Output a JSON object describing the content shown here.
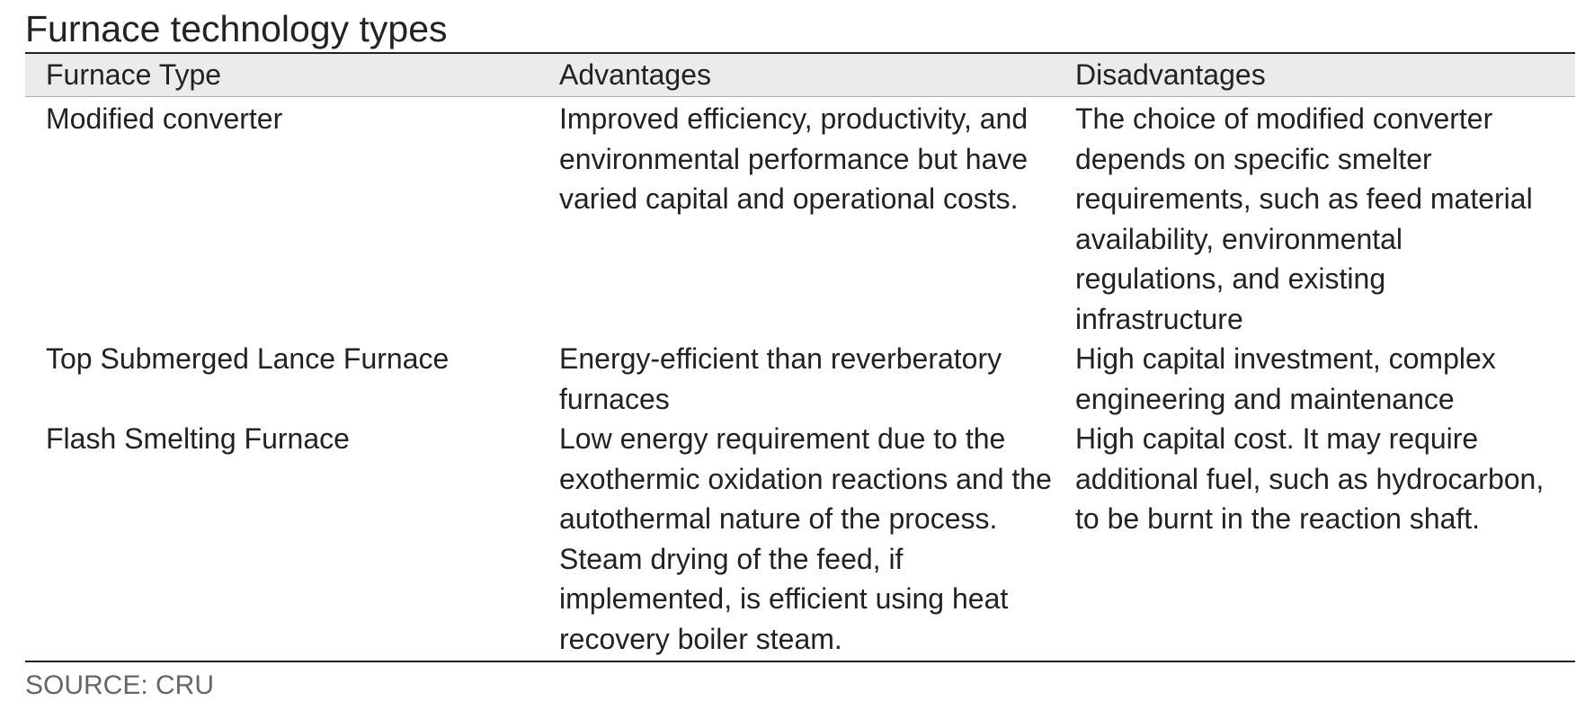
{
  "header": {
    "title": "Furnace technology types"
  },
  "table": {
    "columns": [
      "Furnace Type",
      "Advantages",
      "Disadvantages"
    ],
    "rows": [
      [
        "Modified converter",
        "Improved efficiency, productivity, and environmental performance but have varied capital and operational costs.",
        "The choice of modified converter depends on specific smelter requirements, such as feed material availability, environmental regulations, and existing infrastructure"
      ],
      [
        "Top Submerged Lance Furnace",
        "Energy-efficient than reverberatory furnaces",
        "High capital investment, complex engineering and maintenance"
      ],
      [
        "Flash Smelting Furnace",
        "Low energy requirement due to the exothermic oxidation reactions and the autothermal nature of the process. Steam drying of the feed, if implemented, is efficient using heat recovery boiler steam.",
        "High capital cost. It may require additional fuel, such as hydrocarbon, to be burnt in the reaction shaft."
      ]
    ]
  },
  "footer": {
    "source": "SOURCE: CRU"
  }
}
